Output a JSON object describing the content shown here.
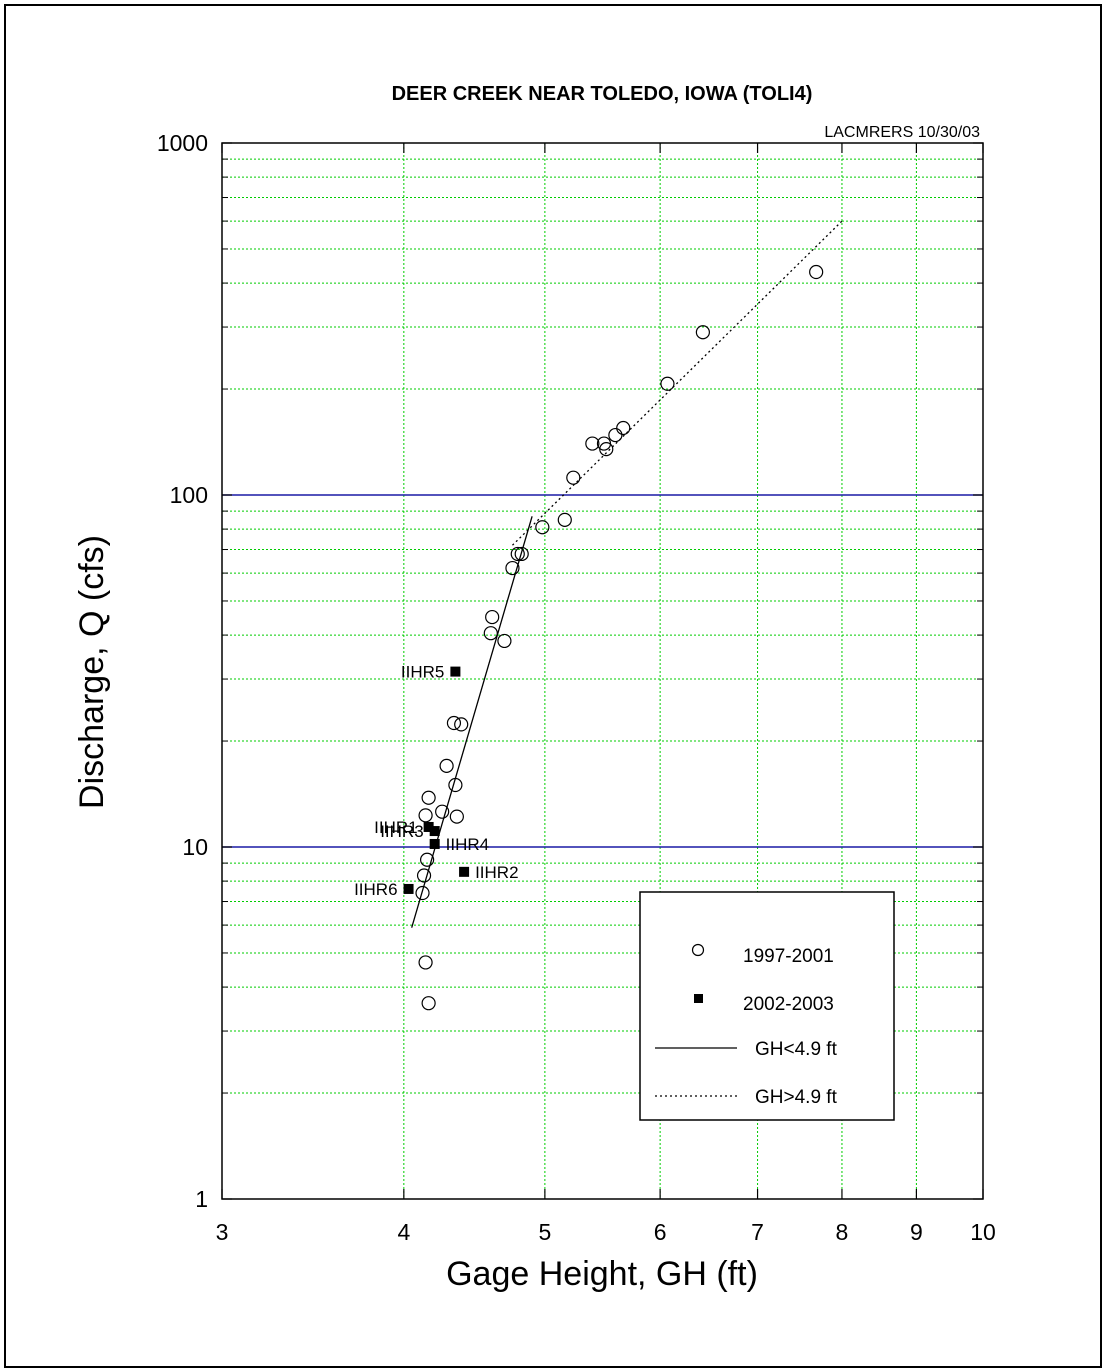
{
  "chart_data": {
    "type": "scatter",
    "title": "DEER CREEK NEAR TOLEDO, IOWA (TOLI4)",
    "credit": "LACMRERS 10/30/03",
    "xlabel": "Gage Height, GH (ft)",
    "ylabel": "Discharge, Q (cfs)",
    "x_scale": "log",
    "y_scale": "log",
    "xlim": [
      3,
      10
    ],
    "ylim": [
      1,
      1000
    ],
    "x_ticks": [
      "3",
      "4",
      "5",
      "6",
      "7",
      "8",
      "9",
      "10"
    ],
    "y_ticks": [
      "1",
      "10",
      "100",
      "1000"
    ],
    "grid": true,
    "grid_color": "#00cc00",
    "highlight_line_color": "#1a1aa6",
    "legend_position": "bottom-right",
    "series": [
      {
        "name": "1997-2001",
        "marker": "open-circle",
        "points": [
          [
            4.12,
            7.4
          ],
          [
            4.13,
            8.3
          ],
          [
            4.15,
            9.2
          ],
          [
            4.14,
            4.7
          ],
          [
            4.16,
            3.6
          ],
          [
            4.14,
            12.3
          ],
          [
            4.16,
            13.8
          ],
          [
            4.25,
            12.6
          ],
          [
            4.35,
            12.2
          ],
          [
            4.34,
            15.0
          ],
          [
            4.28,
            17.0
          ],
          [
            4.33,
            22.5
          ],
          [
            4.38,
            22.3
          ],
          [
            4.59,
            40.5
          ],
          [
            4.6,
            45.0
          ],
          [
            4.69,
            38.5
          ],
          [
            4.75,
            62.0
          ],
          [
            4.79,
            68.0
          ],
          [
            4.82,
            68.0
          ],
          [
            4.98,
            81.0
          ],
          [
            5.16,
            85.0
          ],
          [
            5.23,
            112.0
          ],
          [
            5.39,
            140.0
          ],
          [
            5.49,
            140.0
          ],
          [
            5.51,
            135.0
          ],
          [
            5.59,
            148.0
          ],
          [
            5.66,
            155.0
          ],
          [
            6.07,
            207.0
          ],
          [
            6.42,
            290.0
          ],
          [
            7.68,
            430.0
          ]
        ]
      },
      {
        "name": "2002-2003",
        "marker": "filled-square",
        "points": [
          [
            4.16,
            11.4
          ],
          [
            4.4,
            8.5
          ],
          [
            4.2,
            11.1
          ],
          [
            4.2,
            10.2
          ],
          [
            4.34,
            31.5
          ],
          [
            4.03,
            7.6
          ]
        ]
      },
      {
        "name": "GH<4.9 ft",
        "line_style": "solid",
        "points": [
          [
            4.05,
            5.9
          ],
          [
            4.9,
            87.0
          ]
        ]
      },
      {
        "name": "GH>4.9 ft",
        "line_style": "dotted",
        "points": [
          [
            4.75,
            72.0
          ],
          [
            8.0,
            600.0
          ]
        ]
      }
    ],
    "annotations": [
      {
        "text": "IIHR1",
        "x": 4.16,
        "y": 11.4,
        "side": "left"
      },
      {
        "text": "IIHR2",
        "x": 4.4,
        "y": 8.5,
        "side": "right"
      },
      {
        "text": "IIHR3",
        "x": 4.2,
        "y": 11.1,
        "side": "left"
      },
      {
        "text": "IIHR4",
        "x": 4.2,
        "y": 10.2,
        "side": "right"
      },
      {
        "text": "IIHR5",
        "x": 4.34,
        "y": 31.5,
        "side": "left"
      },
      {
        "text": "IIHR6",
        "x": 4.03,
        "y": 7.6,
        "side": "left"
      }
    ]
  }
}
